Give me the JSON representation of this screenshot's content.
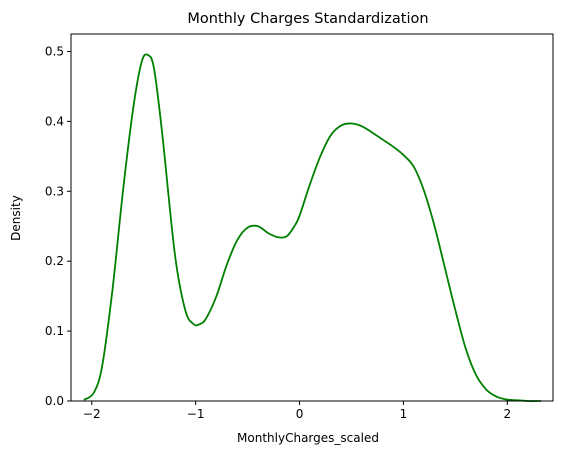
{
  "chart_data": {
    "type": "line",
    "title": "Monthly Charges Standardization",
    "xlabel": "MonthlyCharges_scaled",
    "ylabel": "Density",
    "xlim": [
      -2.2,
      2.44
    ],
    "ylim": [
      0,
      0.525
    ],
    "xticks": [
      -2,
      -1,
      0,
      1,
      2
    ],
    "xtick_labels": [
      "−2",
      "−1",
      "0",
      "1",
      "2"
    ],
    "yticks": [
      0.0,
      0.1,
      0.2,
      0.3,
      0.4,
      0.5
    ],
    "ytick_labels": [
      "0.0",
      "0.1",
      "0.2",
      "0.3",
      "0.4",
      "0.5"
    ],
    "grid": false,
    "legend": "none",
    "series": [
      {
        "color": "#008000",
        "x": [
          -2.07,
          -1.98,
          -1.9,
          -1.8,
          -1.7,
          -1.6,
          -1.52,
          -1.46,
          -1.4,
          -1.32,
          -1.2,
          -1.1,
          -1.02,
          -0.96,
          -0.9,
          -0.8,
          -0.7,
          -0.6,
          -0.5,
          -0.4,
          -0.3,
          -0.2,
          -0.12,
          -0.05,
          0.0,
          0.1,
          0.2,
          0.3,
          0.4,
          0.5,
          0.6,
          0.7,
          0.8,
          0.9,
          1.0,
          1.1,
          1.2,
          1.3,
          1.4,
          1.5,
          1.6,
          1.7,
          1.8,
          1.9,
          2.0,
          2.1,
          2.2,
          2.32
        ],
        "y": [
          0.002,
          0.012,
          0.05,
          0.16,
          0.3,
          0.42,
          0.485,
          0.495,
          0.475,
          0.38,
          0.21,
          0.13,
          0.11,
          0.11,
          0.118,
          0.15,
          0.195,
          0.23,
          0.248,
          0.25,
          0.24,
          0.234,
          0.236,
          0.25,
          0.265,
          0.31,
          0.35,
          0.38,
          0.394,
          0.397,
          0.393,
          0.384,
          0.374,
          0.364,
          0.352,
          0.335,
          0.3,
          0.25,
          0.19,
          0.13,
          0.075,
          0.037,
          0.016,
          0.006,
          0.002,
          0.001,
          0.0,
          0.0
        ]
      }
    ]
  }
}
